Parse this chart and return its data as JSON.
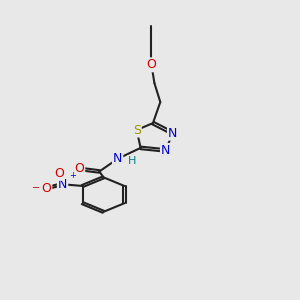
{
  "background_color": "#e8e8e8",
  "bond_color": "#222222",
  "atom_colors": {
    "O": "#cc0000",
    "S": "#999900",
    "N": "#0000cc",
    "H": "#008080",
    "C": "#222222"
  },
  "lw": 1.5,
  "fs": 9
}
